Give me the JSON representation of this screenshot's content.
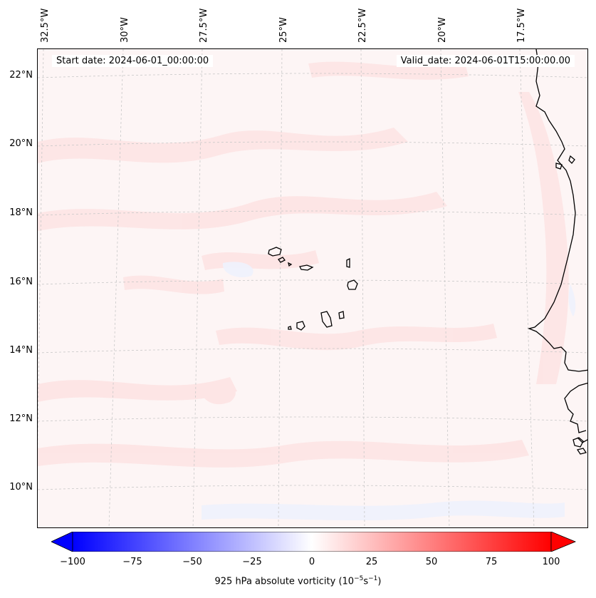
{
  "map": {
    "lon_labels": [
      "32.5°W",
      "30°W",
      "27.5°W",
      "25°W",
      "22.5°W",
      "20°W",
      "17.5°W"
    ],
    "lat_labels": [
      "22°N",
      "20°N",
      "18°N",
      "16°N",
      "14°N",
      "12°N",
      "10°N"
    ],
    "start_date": "Start date: 2024-06-01_00:00:00",
    "valid_date": "Valid_date: 2024-06-01T15:00:00.00",
    "field_colors": {
      "ocean": "#fdf5f5",
      "positive": "#fde3e3",
      "negative": "#eef2fd",
      "coast": "#000000",
      "grid": "#c8c8c8"
    }
  },
  "colorbar": {
    "ticks": [
      "−100",
      "−75",
      "−50",
      "−25",
      "0",
      "25",
      "50",
      "75",
      "100"
    ],
    "label": "925 hPa absolute vorticity (10",
    "label_exp1": "−5",
    "label_mid": "s",
    "label_exp2": "−1",
    "label_end": ")",
    "min_color": "#0000ff",
    "mid_color": "#ffffff",
    "max_color": "#ff0000",
    "range": [
      -100,
      100
    ]
  }
}
